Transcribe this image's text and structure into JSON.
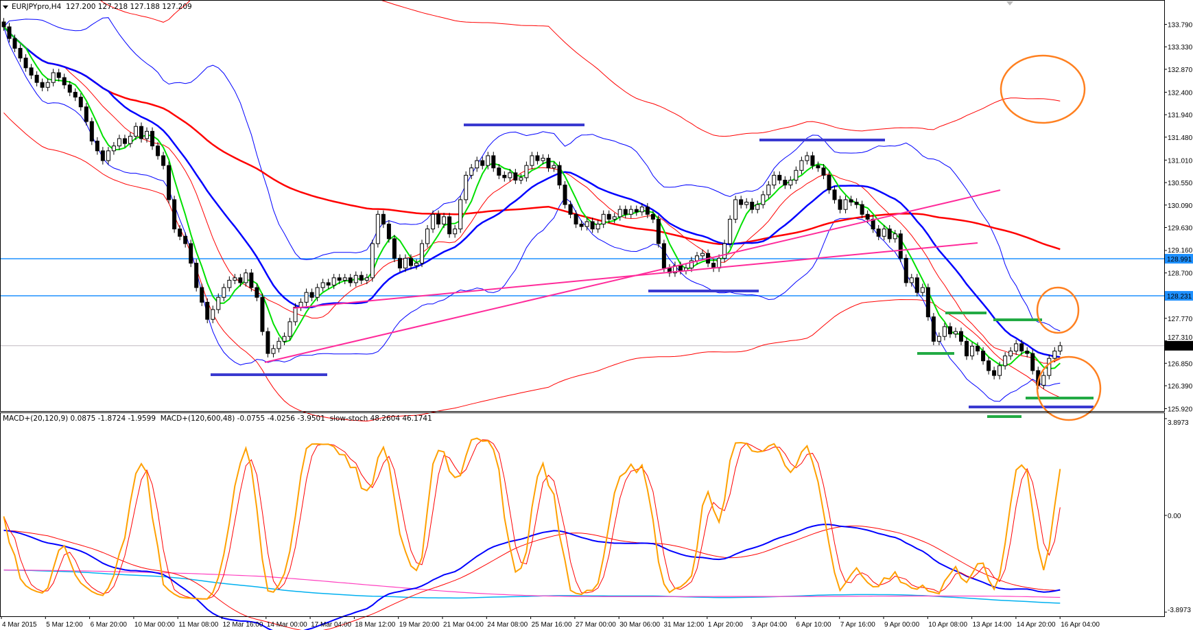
{
  "window": {
    "symbol_title": "EURJPYpro,H4",
    "ohlc_readout": "127.200 127.218 127.188 127.209"
  },
  "indicator_header": {
    "macd_fast": "MACD+(20,120,9) 0.0875 -1.8724 -1.9599",
    "macd_slow": "MACD+(120,600,48) -0.0755 -4.0256 -3.9501",
    "stoch": "slow-stoch 48.2604 46.1741"
  },
  "colors": {
    "fast_ma": "#00e000",
    "mid_ma": "#0000ff",
    "slow_ma": "#ff0000",
    "bollinger": "#0000ff",
    "envelope": "#ff0000",
    "horizontal_levels": "#1e90ff",
    "trendlines": "#ff2a9a",
    "range_marks_blue": "#3a3ad0",
    "range_marks_green": "#22aa44",
    "ellipses": "#ff8020",
    "stoch_main": "#ffa000",
    "stoch_signal": "#ff0000",
    "macd_main": "#0000ff",
    "macd_signal": "#ff0000",
    "macd_slow_main": "#00b0f0",
    "macd_slow_signal": "#ff40c0"
  },
  "chart_data": [
    {
      "type": "candlestick",
      "title": "EURJPYpro,H4",
      "ylim": [
        125.92,
        133.79
      ],
      "y_tick_labels": [
        "133.790",
        "133.330",
        "132.870",
        "132.400",
        "131.940",
        "131.480",
        "131.010",
        "130.550",
        "130.090",
        "129.630",
        "129.160",
        "128.700",
        "127.770",
        "127.310",
        "126.850",
        "126.390",
        "125.920"
      ],
      "x_tick_labels": [
        "4 Mar 2015",
        "5 Mar 12:00",
        "6 Mar 20:00",
        "10 Mar 00:00",
        "11 Mar 08:00",
        "12 Mar 16:00",
        "14 Mar 00:00",
        "17 Mar 04:00",
        "18 Mar 12:00",
        "19 Mar 20:00",
        "21 Mar 04:00",
        "24 Mar 08:00",
        "25 Mar 16:00",
        "27 Mar 00:00",
        "30 Mar 06:00",
        "31 Mar 12:00",
        "1 Apr 20:00",
        "3 Apr 04:00",
        "6 Apr 10:00",
        "7 Apr 16:00",
        "9 Apr 00:00",
        "10 Apr 08:00",
        "13 Apr 14:00",
        "14 Apr 20:00",
        "16 Apr 04:00"
      ],
      "horizontal_levels": [
        "128.991",
        "128.231"
      ],
      "current_price": "127.209",
      "close": [
        133.74,
        133.5,
        133.3,
        133.1,
        132.9,
        132.75,
        132.6,
        132.5,
        132.6,
        132.8,
        132.7,
        132.55,
        132.4,
        132.3,
        132.1,
        131.8,
        131.4,
        131.2,
        131.0,
        131.2,
        131.3,
        131.45,
        131.35,
        131.5,
        131.7,
        131.45,
        131.6,
        131.3,
        131.1,
        130.9,
        130.2,
        129.6,
        129.45,
        129.3,
        128.9,
        128.4,
        128.1,
        127.75,
        127.95,
        128.2,
        128.4,
        128.55,
        128.6,
        128.5,
        128.7,
        128.4,
        128.2,
        127.5,
        127.05,
        127.15,
        127.3,
        127.4,
        127.7,
        128.0,
        128.1,
        128.3,
        128.2,
        128.4,
        128.5,
        128.45,
        128.6,
        128.55,
        128.6,
        128.5,
        128.65,
        128.55,
        128.6,
        129.3,
        129.9,
        129.7,
        129.4,
        129.0,
        128.8,
        129.0,
        128.85,
        128.9,
        129.3,
        129.6,
        129.9,
        129.7,
        129.85,
        129.5,
        129.6,
        130.2,
        130.7,
        130.85,
        131.0,
        130.9,
        131.1,
        130.85,
        130.7,
        130.65,
        130.75,
        130.6,
        130.65,
        130.9,
        131.1,
        131.0,
        131.05,
        130.85,
        130.9,
        130.5,
        130.1,
        129.9,
        129.7,
        129.65,
        129.75,
        129.6,
        129.7,
        129.9,
        129.8,
        129.85,
        130.0,
        129.9,
        130.0,
        129.95,
        130.05,
        129.9,
        129.8,
        129.3,
        128.8,
        128.7,
        128.85,
        128.75,
        128.8,
        128.95,
        129.05,
        129.1,
        128.9,
        128.8,
        129.0,
        129.3,
        129.8,
        130.2,
        130.1,
        130.15,
        130.0,
        130.1,
        130.3,
        130.5,
        130.7,
        130.6,
        130.5,
        130.6,
        130.8,
        131.0,
        131.1,
        130.9,
        130.85,
        130.7,
        130.4,
        130.2,
        130.0,
        130.2,
        130.15,
        130.1,
        129.9,
        129.8,
        129.6,
        129.45,
        129.6,
        129.4,
        129.5,
        129.0,
        128.5,
        128.6,
        128.3,
        128.4,
        127.8,
        127.3,
        127.4,
        127.6,
        127.45,
        127.5,
        127.3,
        127.0,
        127.2,
        127.1,
        126.9,
        126.7,
        126.6,
        126.8,
        127.0,
        127.1,
        127.25,
        127.1,
        127.05,
        126.7,
        126.4,
        126.6,
        126.95,
        127.1,
        127.209
      ]
    },
    {
      "type": "line",
      "title": "MACD+(20,120,9) / MACD+(120,600,48) / slow-stoch",
      "ylim": [
        -3.8973,
        3.8973
      ],
      "y_tick_labels": [
        "3.8973",
        "0.00",
        "-3.8973"
      ]
    }
  ]
}
